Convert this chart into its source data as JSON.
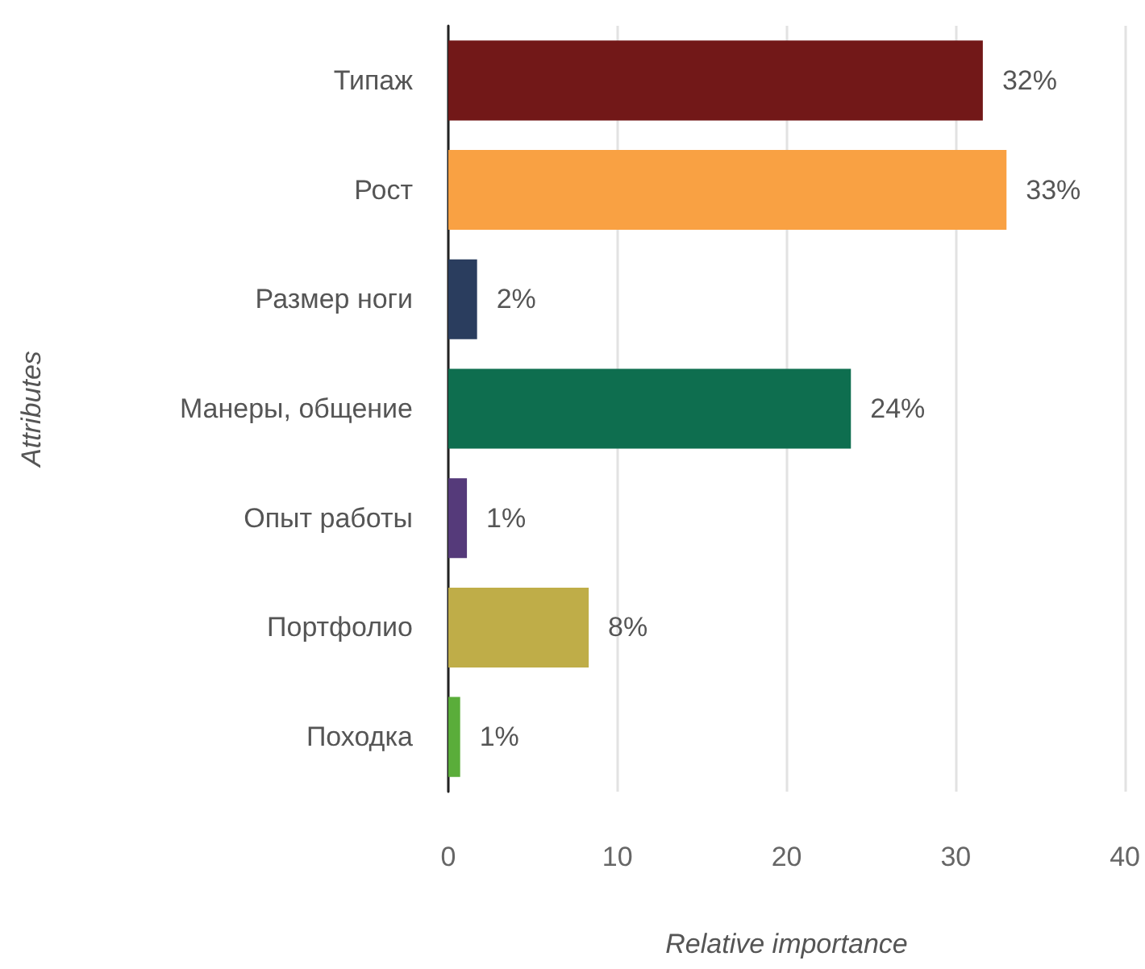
{
  "chart_data": {
    "type": "bar",
    "orientation": "horizontal",
    "xlabel": "Relative importance",
    "ylabel": "Attributes",
    "categories": [
      "Типаж",
      "Рост",
      "Размер ноги",
      "Манеры, общение",
      "Опыт работы",
      "Портфолио",
      "Походка"
    ],
    "values": [
      31.6,
      33.0,
      1.7,
      23.8,
      1.1,
      8.3,
      0.7
    ],
    "colors": [
      "#721818",
      "#f9a143",
      "#2a3d5e",
      "#0e6e4f",
      "#553a7a",
      "#bfad48",
      "#5aad3a"
    ],
    "value_labels": [
      "32%",
      "33%",
      "2%",
      "24%",
      "1%",
      "8%",
      "1%"
    ],
    "xlim": [
      0,
      40
    ],
    "xticks": [
      0,
      10,
      20,
      30,
      40
    ],
    "grid": "x"
  }
}
